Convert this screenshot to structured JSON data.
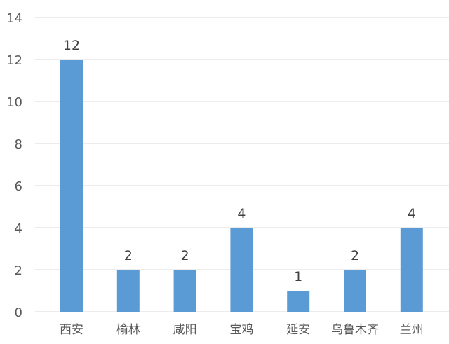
{
  "chart_data": {
    "type": "bar",
    "categories": [
      "西安",
      "榆林",
      "咸阳",
      "宝鸡",
      "延安",
      "乌鲁木齐",
      "兰州"
    ],
    "values": [
      12,
      2,
      2,
      4,
      1,
      2,
      4
    ],
    "title": "",
    "xlabel": "",
    "ylabel": "",
    "ylim": [
      0,
      14
    ],
    "yticks": [
      0,
      2,
      4,
      6,
      8,
      10,
      12,
      14
    ],
    "grid": true,
    "data_labels": true,
    "colors": {
      "bar": "#5b9bd5",
      "grid": "#d9d9d9",
      "text": "#595959"
    }
  }
}
